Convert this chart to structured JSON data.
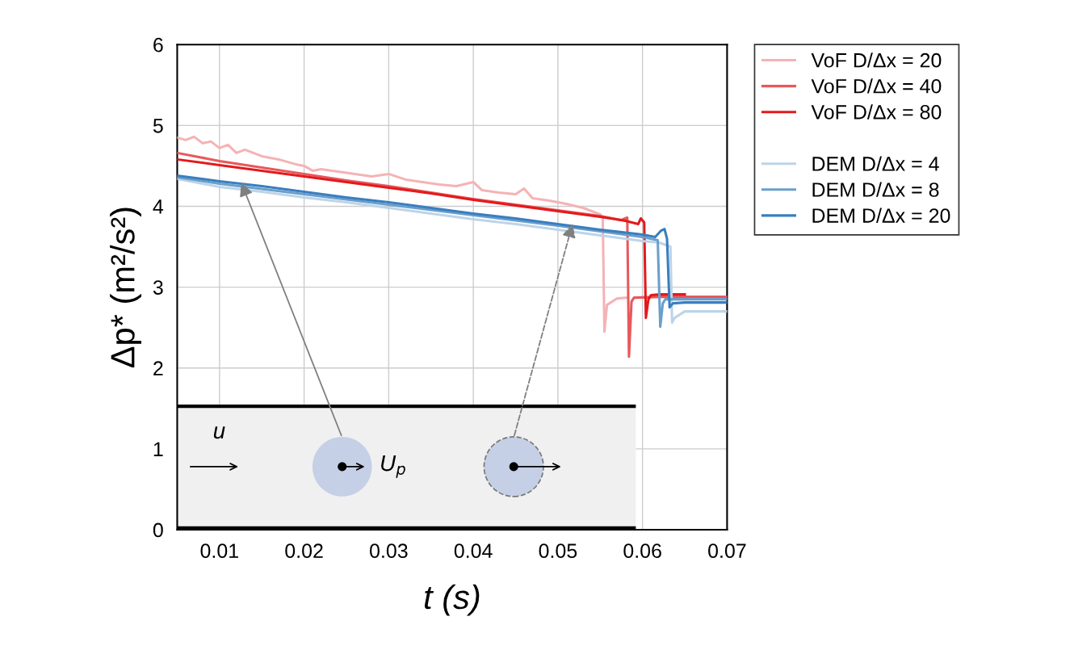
{
  "chart_data": {
    "type": "line",
    "xlabel": "t (s)",
    "ylabel": "Δp* (m²/s²)",
    "xlim": [
      0.005,
      0.07
    ],
    "ylim": [
      0,
      6
    ],
    "xticks": [
      0.01,
      0.02,
      0.03,
      0.04,
      0.05,
      0.06,
      0.07
    ],
    "yticks": [
      0,
      1,
      2,
      3,
      4,
      5,
      6
    ],
    "grid": true,
    "legend": "right",
    "marker": "none",
    "line_style": "solid",
    "annotations": [
      "u",
      "U$_{p}$"
    ],
    "series": [
      {
        "name": "VoF D/Δx = 20",
        "color": "#f4b3b5",
        "x": [
          0.005,
          0.006,
          0.007,
          0.008,
          0.009,
          0.01,
          0.011,
          0.012,
          0.013,
          0.015,
          0.017,
          0.019,
          0.02,
          0.021,
          0.022,
          0.024,
          0.026,
          0.028,
          0.03,
          0.032,
          0.034,
          0.036,
          0.038,
          0.04,
          0.041,
          0.043,
          0.045,
          0.046,
          0.047,
          0.049,
          0.051,
          0.053,
          0.055,
          0.0553,
          0.0555,
          0.0558,
          0.057,
          0.0582
        ],
        "values": [
          4.85,
          4.82,
          4.86,
          4.78,
          4.8,
          4.72,
          4.76,
          4.66,
          4.7,
          4.62,
          4.58,
          4.52,
          4.5,
          4.44,
          4.46,
          4.43,
          4.4,
          4.37,
          4.4,
          4.33,
          4.3,
          4.27,
          4.25,
          4.3,
          4.2,
          4.17,
          4.15,
          4.22,
          4.1,
          4.07,
          4.03,
          3.98,
          3.9,
          3.85,
          2.45,
          2.78,
          2.86,
          2.87
        ]
      },
      {
        "name": "VoF D/Δx = 40",
        "color": "#e8585c",
        "x": [
          0.005,
          0.01,
          0.015,
          0.02,
          0.025,
          0.03,
          0.035,
          0.04,
          0.045,
          0.05,
          0.055,
          0.0575,
          0.0582,
          0.0584,
          0.0587,
          0.059,
          0.062,
          0.07
        ],
        "values": [
          4.66,
          4.56,
          4.48,
          4.4,
          4.32,
          4.25,
          4.17,
          4.09,
          4.02,
          3.95,
          3.88,
          3.83,
          3.86,
          2.14,
          2.82,
          2.87,
          2.88,
          2.88
        ]
      },
      {
        "name": "VoF D/Δx = 80",
        "color": "#e31a1c",
        "x": [
          0.005,
          0.01,
          0.015,
          0.02,
          0.025,
          0.03,
          0.035,
          0.04,
          0.045,
          0.05,
          0.055,
          0.058,
          0.0595,
          0.0598,
          0.0602,
          0.0604,
          0.0607,
          0.061,
          0.062,
          0.065
        ],
        "values": [
          4.58,
          4.51,
          4.44,
          4.37,
          4.3,
          4.23,
          4.16,
          4.08,
          4.01,
          3.94,
          3.87,
          3.82,
          3.78,
          3.85,
          3.8,
          2.62,
          2.85,
          2.9,
          2.91,
          2.91
        ]
      },
      {
        "name": "DEM D/Δx = 4",
        "color": "#bdd4e8",
        "x": [
          0.005,
          0.01,
          0.015,
          0.02,
          0.025,
          0.03,
          0.035,
          0.04,
          0.045,
          0.05,
          0.055,
          0.06,
          0.062,
          0.0633,
          0.0635,
          0.0638,
          0.065,
          0.07
        ],
        "values": [
          4.34,
          4.24,
          4.18,
          4.11,
          4.05,
          3.98,
          3.91,
          3.84,
          3.78,
          3.71,
          3.64,
          3.57,
          3.55,
          3.5,
          2.56,
          2.62,
          2.7,
          2.7
        ]
      },
      {
        "name": "DEM D/Δx = 8",
        "color": "#6a9fcc",
        "x": [
          0.005,
          0.01,
          0.02,
          0.03,
          0.04,
          0.05,
          0.055,
          0.06,
          0.0618,
          0.0621,
          0.0624,
          0.0627,
          0.07
        ],
        "values": [
          4.36,
          4.28,
          4.15,
          4.02,
          3.89,
          3.76,
          3.69,
          3.62,
          3.58,
          2.51,
          2.8,
          2.85,
          2.85
        ]
      },
      {
        "name": "DEM D/Δx = 20",
        "color": "#3a7ebf",
        "x": [
          0.005,
          0.01,
          0.015,
          0.02,
          0.025,
          0.03,
          0.035,
          0.04,
          0.045,
          0.05,
          0.055,
          0.06,
          0.0615,
          0.0622,
          0.0626,
          0.0629,
          0.0632,
          0.0636,
          0.065,
          0.07
        ],
        "values": [
          4.38,
          4.31,
          4.25,
          4.18,
          4.11,
          4.05,
          3.98,
          3.91,
          3.85,
          3.78,
          3.71,
          3.65,
          3.62,
          3.7,
          3.72,
          3.6,
          2.75,
          2.8,
          2.81,
          2.81
        ]
      }
    ]
  }
}
